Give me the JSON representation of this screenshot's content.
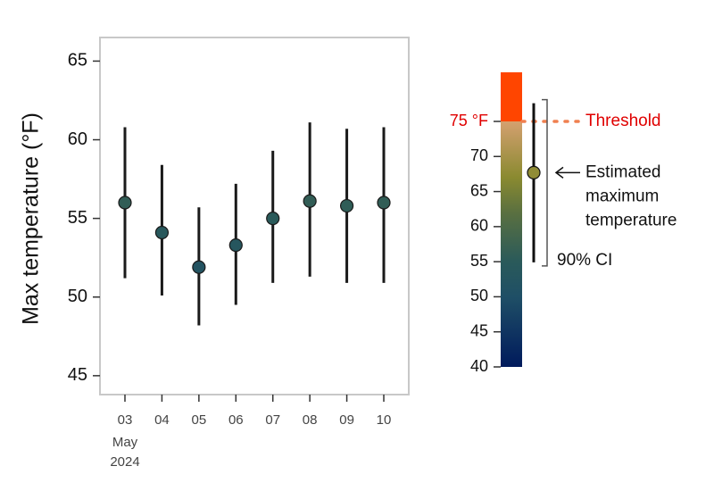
{
  "chart_data": {
    "type": "errorbar",
    "y_label": "Max temperature (°F)",
    "categories": [
      "03",
      "04",
      "05",
      "06",
      "07",
      "08",
      "09",
      "10"
    ],
    "x_sublabels": [
      "May",
      "2024"
    ],
    "values": [
      56.0,
      54.1,
      51.9,
      53.3,
      55.0,
      56.1,
      55.8,
      56.0
    ],
    "low": [
      51.2,
      50.1,
      48.2,
      49.5,
      50.9,
      51.3,
      50.9,
      50.9
    ],
    "high": [
      60.8,
      58.4,
      55.7,
      57.2,
      59.3,
      61.1,
      60.7,
      60.8
    ],
    "ylim": [
      43.8,
      66.5
    ],
    "yticks": [
      45,
      50,
      55,
      60,
      65
    ],
    "colorbar": {
      "lim": [
        40,
        82
      ],
      "ticks": [
        40,
        45,
        50,
        55,
        60,
        65,
        70,
        {
          "value": 75,
          "label": "75 °F"
        }
      ],
      "stops": [
        [
          40,
          "#001a5c"
        ],
        [
          50,
          "#1f4f66"
        ],
        [
          55,
          "#2a5a5a"
        ],
        [
          62,
          "#5a7040"
        ],
        [
          67,
          "#8a8a30"
        ],
        [
          75,
          "#d4a070"
        ]
      ],
      "above_color": "#ff4500",
      "threshold": 75,
      "threshold_label": "Threshold",
      "threshold_color": "#f08050"
    },
    "legend": {
      "example": {
        "value": 67.7,
        "low": 54.9,
        "high": 77.6
      },
      "estimate_label": [
        "Estimated",
        "maximum",
        "temperature"
      ],
      "ci_label": "90% CI"
    }
  }
}
